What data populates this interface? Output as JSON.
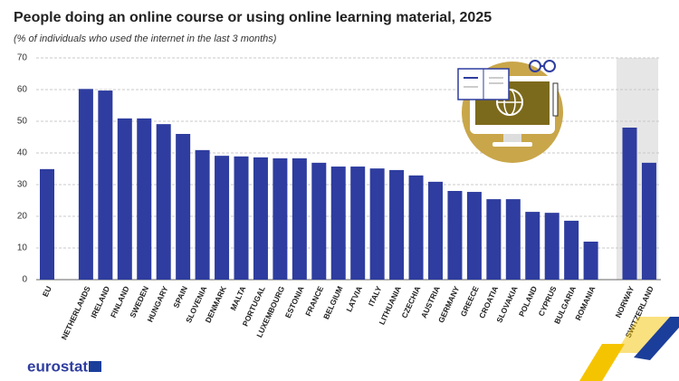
{
  "chart_data": {
    "type": "bar",
    "title": "People doing an online course or using online learning material, 2025",
    "subtitle": "(% of individuals who used the internet in the last 3 months)",
    "categories": [
      "EU",
      "NETHERLANDS",
      "IRELAND",
      "FINLAND",
      "SWEDEN",
      "HUNGARY",
      "SPAIN",
      "SLOVENIA",
      "DENMARK",
      "MALTA",
      "PORTUGAL",
      "LUXEMBOURG",
      "ESTONIA",
      "FRANCE",
      "BELGIUM",
      "LATVIA",
      "ITALY",
      "LITHUANIA",
      "CZECHIA",
      "AUSTRIA",
      "GERMANY",
      "GREECE",
      "CROATIA",
      "SLOVAKIA",
      "POLAND",
      "CYPRUS",
      "BULGARIA",
      "ROMANIA",
      "NORWAY",
      "SWITZERLAND"
    ],
    "values": [
      34.9,
      60.2,
      59.7,
      50.9,
      50.9,
      49.1,
      46.0,
      40.9,
      39.1,
      38.9,
      38.6,
      38.3,
      38.3,
      36.9,
      35.7,
      35.7,
      35.1,
      34.6,
      32.9,
      30.9,
      28.0,
      27.7,
      25.4,
      25.4,
      21.4,
      21.1,
      18.6,
      12.0,
      48.0,
      36.9
    ],
    "color": "#2e3d9f",
    "ylim": [
      0,
      70
    ],
    "yticks": [
      0,
      10,
      20,
      30,
      40,
      50,
      60,
      70
    ],
    "grid": true,
    "logo": "eurostat"
  }
}
